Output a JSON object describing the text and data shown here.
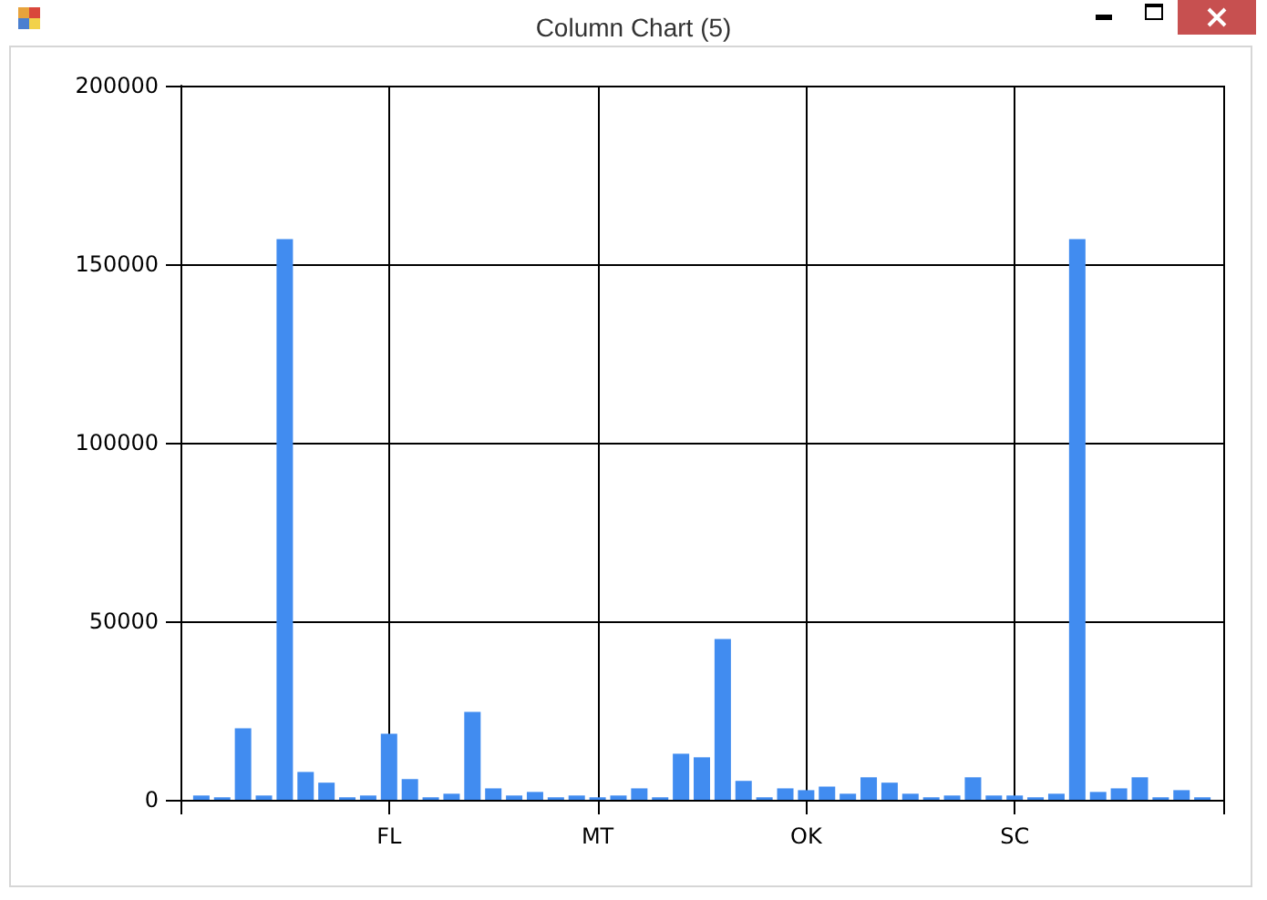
{
  "chart_data": {
    "type": "bar",
    "title": "Column Chart (5)",
    "categories": [
      null,
      null,
      null,
      null,
      null,
      null,
      null,
      null,
      null,
      "FL",
      null,
      null,
      null,
      null,
      null,
      null,
      null,
      null,
      null,
      "MT",
      null,
      null,
      null,
      null,
      null,
      null,
      null,
      null,
      null,
      "OK",
      null,
      null,
      null,
      null,
      null,
      null,
      null,
      null,
      null,
      "SC",
      null,
      null,
      null,
      null,
      null,
      null,
      null,
      null,
      null
    ],
    "values": [
      1200,
      700,
      20000,
      1200,
      157000,
      7800,
      4800,
      700,
      1200,
      18500,
      5800,
      700,
      1700,
      24600,
      3200,
      1200,
      2200,
      700,
      1200,
      700,
      1200,
      3200,
      700,
      12900,
      11900,
      45000,
      5300,
      700,
      3200,
      2700,
      3700,
      1700,
      6300,
      4800,
      1700,
      700,
      1200,
      6300,
      1200,
      1200,
      700,
      1700,
      157000,
      2200,
      3200,
      6300,
      700,
      2700,
      700
    ],
    "color": "#418cf0",
    "ylim": [
      0,
      200000
    ],
    "yticks": [
      0,
      50000,
      100000,
      150000,
      200000
    ],
    "grid": true
  }
}
